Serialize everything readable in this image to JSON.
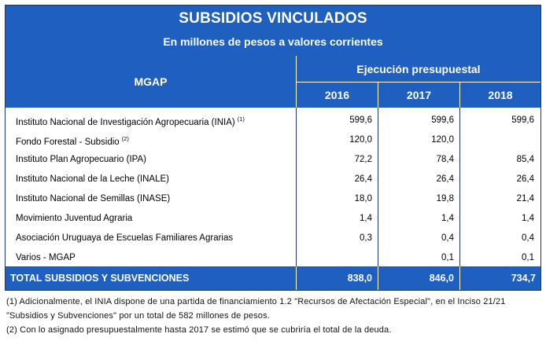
{
  "header": {
    "title": "SUBSIDIOS VINCULADOS",
    "subtitle": "En millones de pesos a valores corrientes"
  },
  "table": {
    "entity_header": "MGAP",
    "group_header": "Ejecución presupuestal",
    "years": [
      "2016",
      "2017",
      "2018"
    ],
    "rows": [
      {
        "name": "Instituto Nacional de Investigación Agropecuaria (INIA)",
        "note": "(1)",
        "v2016": "599,6",
        "v2017": "599,6",
        "v2018": "599,6"
      },
      {
        "name": "Fondo Forestal - Subsidio",
        "note": "(2)",
        "v2016": "120,0",
        "v2017": "120,0",
        "v2018": ""
      },
      {
        "name": "Instituto Plan Agropecuario (IPA)",
        "note": "",
        "v2016": "72,2",
        "v2017": "78,4",
        "v2018": "85,4"
      },
      {
        "name": "Instituto Nacional de la Leche (INALE)",
        "note": "",
        "v2016": "26,4",
        "v2017": "26,4",
        "v2018": "26,4"
      },
      {
        "name": "Instituto Nacional de Semillas (INASE)",
        "note": "",
        "v2016": "18,0",
        "v2017": "19,8",
        "v2018": "21,4"
      },
      {
        "name": "Movimiento Juventud Agraria",
        "note": "",
        "v2016": "1,4",
        "v2017": "1,4",
        "v2018": "1,4"
      },
      {
        "name": "Asociación Uruguaya de Escuelas Familiares Agrarias",
        "note": "",
        "v2016": "0,3",
        "v2017": "0,4",
        "v2018": "0,4"
      },
      {
        "name": "Varios - MGAP",
        "note": "",
        "v2016": "",
        "v2017": "0,1",
        "v2018": "0,1"
      }
    ],
    "total": {
      "label": "TOTAL SUBSIDIOS Y SUBVENCIONES",
      "v2016": "838,0",
      "v2017": "846,0",
      "v2018": "734,7"
    }
  },
  "notes": [
    "(1) Adicionalmente, el INIA dispone de una partida de financiamiento 1.2 \"Recursos de Afectación Especial\", en el Inciso 21/21 \"Subsidios y Subvenciones\" por un total de 582 millones de pesos.",
    "(2) Con lo asignado presupuestalmente hasta 2017 se estimó que se cubriría el total de la deuda."
  ],
  "colors": {
    "band": "#1f5fbf",
    "border": "#1f3864"
  }
}
